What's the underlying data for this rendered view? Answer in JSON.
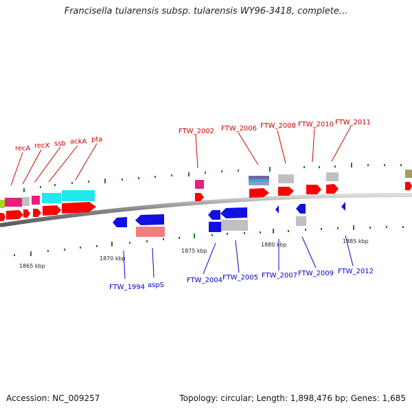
{
  "title": "Francisella tularensis subsp. tularensis WY96-3418, complete...",
  "footer": {
    "accession": "Accession: NC_009257",
    "info": "Topology: circular; Length: 1,898,476 bp; Genes: 1,685"
  },
  "ticks": [
    "1865 kbp",
    "1870 kbp",
    "1875 kbp",
    "1880 kbp",
    "1885 kbp"
  ],
  "genes_top": [
    "recA",
    "recX",
    "ssb",
    "ackA",
    "pta",
    "FTW_2002",
    "FTW_2006",
    "FTW_2008",
    "FTW_2010",
    "FTW_2011"
  ],
  "genes_bottom": [
    "FTW_1994",
    "aspS",
    "FTW_2004",
    "FTW_2005",
    "FTW_2007",
    "FTW_2009",
    "FTW_2012"
  ],
  "colors": {
    "forward_cds": "#ff0000",
    "reverse_cds": "#1010e0",
    "label_forward": "#cc0000",
    "label_reverse": "#0000cc",
    "tick": "#1a7a1a",
    "backbone": "#888888"
  }
}
